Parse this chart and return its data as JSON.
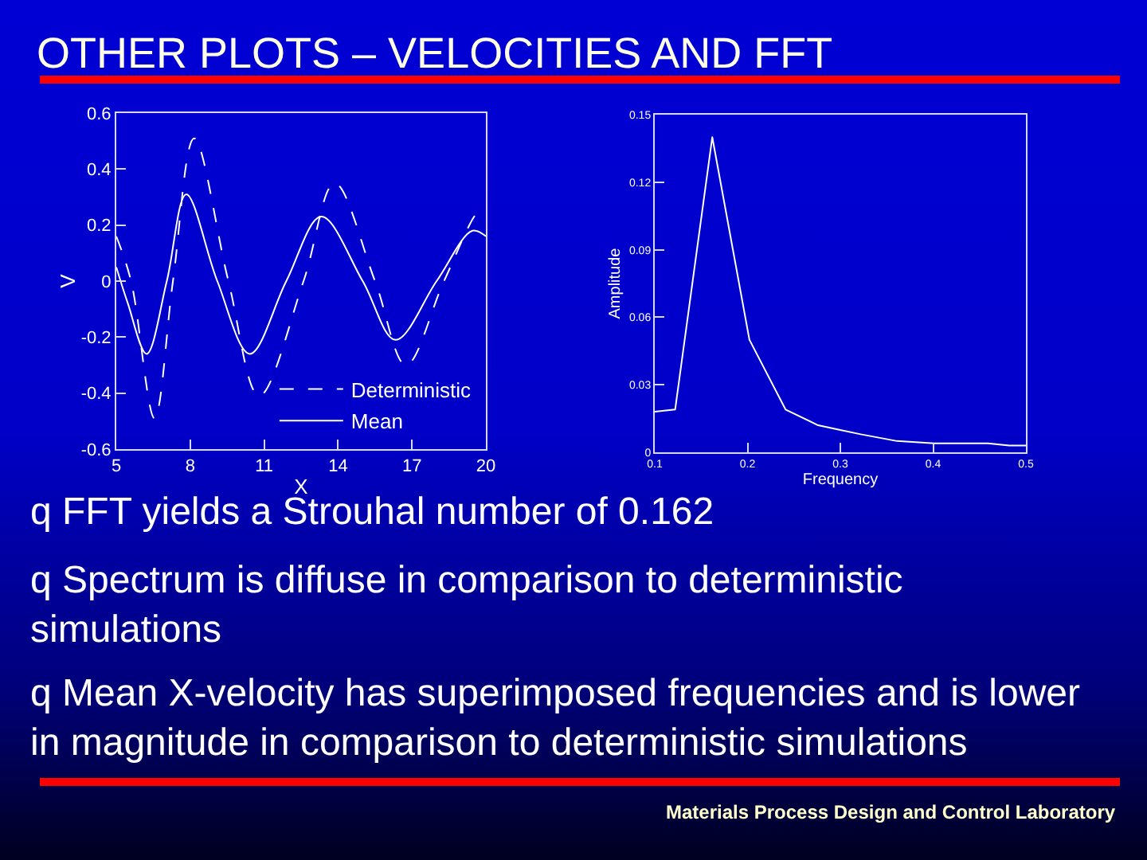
{
  "chart_data": [
    {
      "type": "line",
      "title": "OTHER PLOTS – VELOCITIES AND FFT",
      "xlabel": "X",
      "ylabel": "V",
      "xlim": [
        5,
        20
      ],
      "xticks": [
        5,
        8,
        11,
        14,
        17,
        20
      ],
      "ylim": [
        -0.6,
        0.6
      ],
      "yticks": [
        -0.6,
        -0.4,
        -0.2,
        0,
        0.2,
        0.4,
        0.6
      ],
      "legend": "bottom right",
      "series": [
        {
          "name": "Deterministic",
          "color": "#ffffff",
          "line_style": "dashed",
          "x": [
            5.0,
            5.6,
            6.55,
            7.3,
            8.16,
            9.55,
            10.8,
            12.6,
            13.86,
            15.5,
            16.76,
            18.3,
            19.7,
            20
          ],
          "values": [
            0.16,
            0,
            -0.49,
            0,
            0.51,
            0,
            -0.41,
            0,
            0.35,
            0,
            -0.3,
            0,
            0.25,
            0.26
          ]
        },
        {
          "name": "Mean",
          "color": "#ffffff",
          "line_style": "solid",
          "x": [
            5.0,
            5.47,
            6.23,
            7.05,
            7.84,
            9.1,
            10.42,
            11.9,
            13.32,
            15.0,
            16.33,
            18.0,
            19.45,
            20
          ],
          "values": [
            0.05,
            -0.08,
            -0.26,
            0,
            0.31,
            0,
            -0.26,
            0,
            0.23,
            0,
            -0.21,
            0,
            0.18,
            0.16
          ]
        }
      ]
    },
    {
      "type": "line",
      "xlabel": "Frequency",
      "ylabel": "Amplitude",
      "xlim": [
        0.1,
        0.5
      ],
      "xticks": [
        0.1,
        0.2,
        0.3,
        0.4,
        0.5
      ],
      "ylim": [
        0,
        0.15
      ],
      "yticks": [
        0,
        0.03,
        0.06,
        0.09,
        0.12,
        0.15
      ],
      "series": [
        {
          "color": "#ffffff",
          "x": [
            0.1,
            0.122,
            0.162,
            0.202,
            0.241,
            0.276,
            0.299,
            0.322,
            0.361,
            0.401,
            0.459,
            0.482,
            0.5
          ],
          "values": [
            0.018,
            0.019,
            0.14,
            0.05,
            0.019,
            0.012,
            0.01,
            0.008,
            0.005,
            0.004,
            0.004,
            0.003,
            0.003
          ]
        }
      ],
      "annotations": [
        "q FFT yields a Strouhal number of 0.162",
        "q Spectrum is diffuse in comparison to deterministic\nsimulations",
        "q Mean X-velocity has superimposed frequencies and is lower\nin magnitude in comparison to deterministic simulations",
        "Materials Process Design and Control Laboratory"
      ]
    }
  ]
}
